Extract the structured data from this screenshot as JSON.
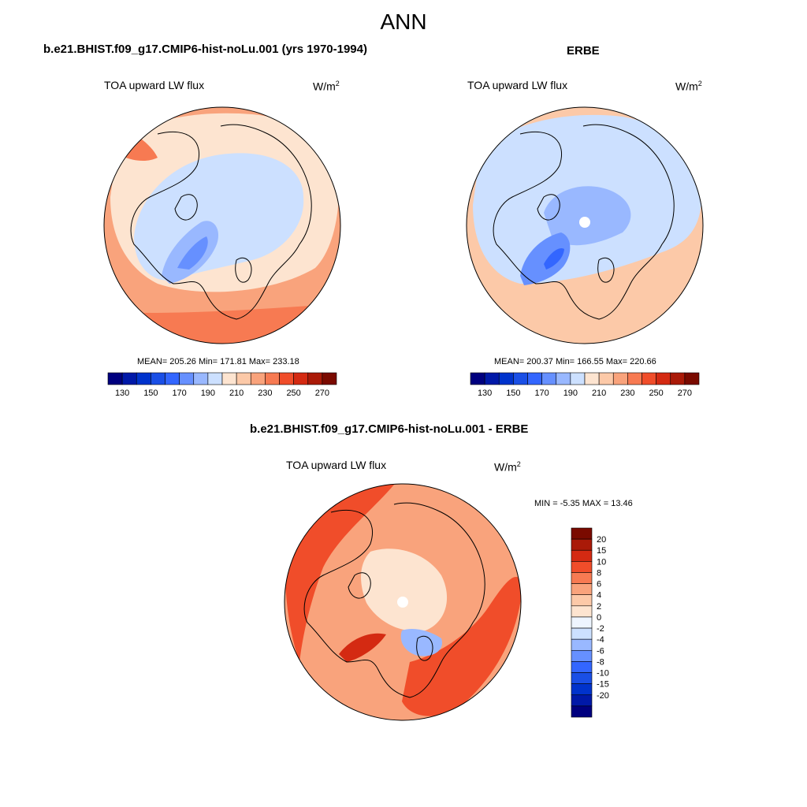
{
  "title": "ANN",
  "panels": [
    {
      "title": "b.e21.BHIST.f09_g17.CMIP6-hist-noLu.001 (yrs 1970-1994)",
      "variable": "TOA upward LW flux",
      "units_base": "W/m",
      "units_exp": "2",
      "stats": "MEAN= 205.26  Min= 171.81  Max= 233.18"
    },
    {
      "title": "ERBE",
      "variable": "TOA upward LW flux",
      "units_base": "W/m",
      "units_exp": "2",
      "stats": "MEAN= 200.37  Min= 166.55  Max= 220.66"
    },
    {
      "title": "b.e21.BHIST.f09_g17.CMIP6-hist-noLu.001 - ERBE",
      "variable": "TOA upward LW flux",
      "units_base": "W/m",
      "units_exp": "2",
      "stats": "MIN =  -5.35 MAX =  13.46"
    }
  ],
  "colorbar_abs": {
    "orientation": "horizontal",
    "colors": [
      "#00007f",
      "#0019a8",
      "#0033cc",
      "#1a4fe6",
      "#3366ff",
      "#6690ff",
      "#99b8ff",
      "#cce0ff",
      "#fde4d0",
      "#fcc9a8",
      "#f9a37c",
      "#f77a52",
      "#f04d2a",
      "#d42a12",
      "#aa1a08",
      "#7a0a00"
    ],
    "tick_labels": [
      "130",
      "150",
      "170",
      "190",
      "210",
      "230",
      "250",
      "270"
    ]
  },
  "colorbar_diff": {
    "orientation": "vertical",
    "colors": [
      "#7a0a00",
      "#aa1a08",
      "#d42a12",
      "#f04d2a",
      "#f77a52",
      "#f9a37c",
      "#fcc9a8",
      "#fde4d0",
      "#eef5ff",
      "#cce0ff",
      "#99b8ff",
      "#6690ff",
      "#3366ff",
      "#1a4fe6",
      "#0033cc",
      "#0019a8",
      "#00007f"
    ],
    "tick_labels": [
      "20",
      "15",
      "10",
      "8",
      "6",
      "4",
      "2",
      "0",
      "-2",
      "-4",
      "-6",
      "-8",
      "-10",
      "-15",
      "-20"
    ]
  }
}
